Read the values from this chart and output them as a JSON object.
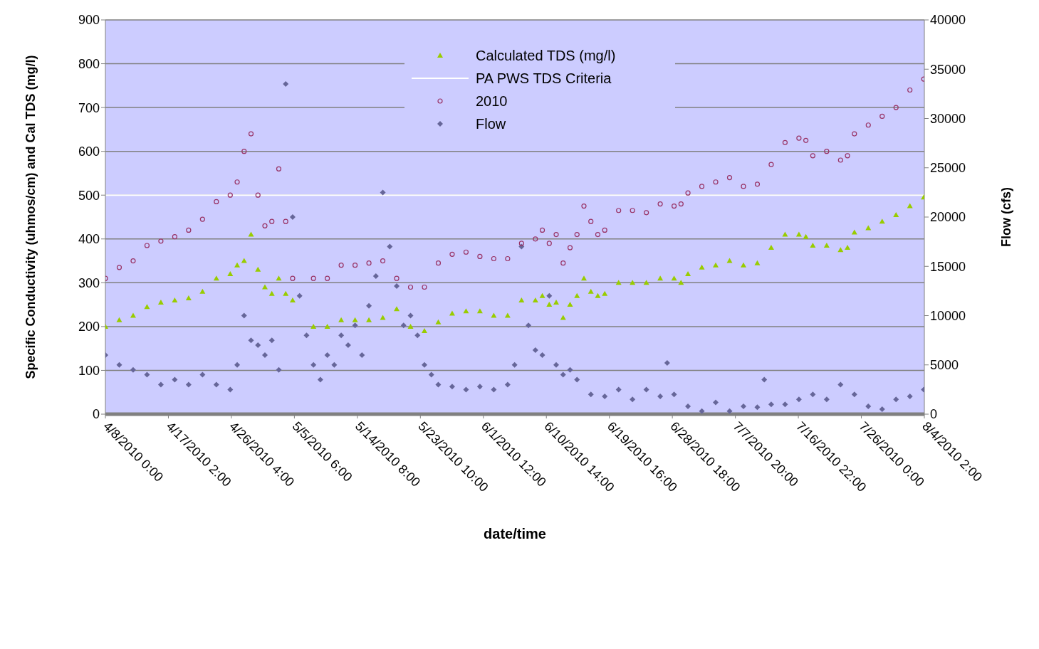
{
  "chart_data": {
    "type": "scatter",
    "xlabel": "date/time",
    "ylabel": "Specific Conductivity (uhmos/cm) and Cal TDS (mg/l)",
    "y2label": "Flow (cfs)",
    "x": [
      "2010-04-08",
      "2010-04-10",
      "2010-04-12",
      "2010-04-14",
      "2010-04-16",
      "2010-04-18",
      "2010-04-20",
      "2010-04-22",
      "2010-04-24",
      "2010-04-26",
      "2010-04-27",
      "2010-04-28",
      "2010-04-29",
      "2010-04-30",
      "2010-05-01",
      "2010-05-02",
      "2010-05-03",
      "2010-05-04",
      "2010-05-05",
      "2010-05-08",
      "2010-05-10",
      "2010-05-12",
      "2010-05-14",
      "2010-05-16",
      "2010-05-18",
      "2010-05-20",
      "2010-05-22",
      "2010-05-24",
      "2010-05-26",
      "2010-05-28",
      "2010-05-30",
      "2010-06-01",
      "2010-06-03",
      "2010-06-05",
      "2010-06-07",
      "2010-06-09",
      "2010-06-10",
      "2010-06-11",
      "2010-06-12",
      "2010-06-13",
      "2010-06-14",
      "2010-06-15",
      "2010-06-16",
      "2010-06-17",
      "2010-06-18",
      "2010-06-19",
      "2010-06-21",
      "2010-06-23",
      "2010-06-25",
      "2010-06-27",
      "2010-06-29",
      "2010-06-30",
      "2010-07-01",
      "2010-07-03",
      "2010-07-05",
      "2010-07-07",
      "2010-07-09",
      "2010-07-11",
      "2010-07-13",
      "2010-07-15",
      "2010-07-17",
      "2010-07-18",
      "2010-07-19",
      "2010-07-21",
      "2010-07-23",
      "2010-07-24",
      "2010-07-25",
      "2010-07-27",
      "2010-07-29",
      "2010-07-31",
      "2010-08-02",
      "2010-08-04"
    ],
    "series": [
      {
        "name": "Calculated TDS (mg/l)",
        "color": "#99cc00",
        "marker": "triangle",
        "values": [
          200,
          215,
          225,
          245,
          255,
          260,
          265,
          280,
          310,
          320,
          340,
          350,
          410,
          330,
          290,
          275,
          310,
          275,
          260,
          200,
          200,
          215,
          215,
          215,
          220,
          240,
          200,
          190,
          210,
          230,
          235,
          235,
          225,
          225,
          260,
          260,
          270,
          250,
          255,
          220,
          250,
          270,
          310,
          280,
          270,
          275,
          300,
          300,
          300,
          310,
          310,
          300,
          320,
          335,
          340,
          350,
          340,
          345,
          380,
          410,
          410,
          405,
          385,
          385,
          375,
          380,
          415,
          425,
          440,
          455,
          475,
          495
        ]
      },
      {
        "name": "PA PWS TDS Criteria",
        "type": "line",
        "color": "#ffffff",
        "marker": "none",
        "line_style": "solid",
        "x": [
          "2010-04-08",
          "2010-08-04T02:00"
        ],
        "values": [
          500,
          500
        ]
      },
      {
        "name": "2010",
        "color": "#993366",
        "marker": "circle",
        "values": [
          310,
          335,
          350,
          385,
          395,
          405,
          420,
          445,
          485,
          500,
          530,
          600,
          640,
          500,
          430,
          440,
          560,
          440,
          310,
          310,
          310,
          340,
          340,
          345,
          350,
          310,
          290,
          290,
          345,
          365,
          370,
          360,
          355,
          355,
          390,
          400,
          420,
          390,
          410,
          345,
          380,
          410,
          475,
          440,
          410,
          420,
          465,
          465,
          460,
          480,
          475,
          480,
          505,
          520,
          530,
          540,
          520,
          525,
          570,
          620,
          630,
          625,
          590,
          600,
          580,
          590,
          640,
          660,
          680,
          700,
          740,
          765
        ]
      },
      {
        "name": "Flow",
        "color": "#666699",
        "marker": "diamond",
        "axis": "y2",
        "x": [
          "2010-04-08",
          "2010-04-10",
          "2010-04-12",
          "2010-04-14",
          "2010-04-16",
          "2010-04-18",
          "2010-04-20",
          "2010-04-22",
          "2010-04-24",
          "2010-04-26",
          "2010-04-27",
          "2010-04-28",
          "2010-04-29",
          "2010-04-30",
          "2010-05-01",
          "2010-05-02",
          "2010-05-03",
          "2010-05-04",
          "2010-05-05",
          "2010-05-06",
          "2010-05-07",
          "2010-05-08",
          "2010-05-09",
          "2010-05-10",
          "2010-05-11",
          "2010-05-12",
          "2010-05-13",
          "2010-05-14",
          "2010-05-15",
          "2010-05-16",
          "2010-05-17",
          "2010-05-18",
          "2010-05-19",
          "2010-05-20",
          "2010-05-21",
          "2010-05-22",
          "2010-05-23",
          "2010-05-24",
          "2010-05-25",
          "2010-05-26",
          "2010-05-28",
          "2010-05-30",
          "2010-06-01",
          "2010-06-03",
          "2010-06-05",
          "2010-06-06",
          "2010-06-07",
          "2010-06-08",
          "2010-06-09",
          "2010-06-10",
          "2010-06-11",
          "2010-06-12",
          "2010-06-13",
          "2010-06-14",
          "2010-06-15",
          "2010-06-17",
          "2010-06-19",
          "2010-06-21",
          "2010-06-23",
          "2010-06-25",
          "2010-06-27",
          "2010-06-28",
          "2010-06-29",
          "2010-07-01",
          "2010-07-03",
          "2010-07-05",
          "2010-07-07",
          "2010-07-09",
          "2010-07-11",
          "2010-07-12",
          "2010-07-13",
          "2010-07-15",
          "2010-07-17",
          "2010-07-19",
          "2010-07-21",
          "2010-07-23",
          "2010-07-25",
          "2010-07-27",
          "2010-07-29",
          "2010-07-31",
          "2010-08-02",
          "2010-08-04"
        ],
        "values": [
          6000,
          5000,
          4500,
          4000,
          3000,
          3500,
          3000,
          4000,
          3000,
          2500,
          5000,
          10000,
          7500,
          7000,
          6000,
          7500,
          4500,
          33500,
          20000,
          12000,
          8000,
          5000,
          3500,
          6000,
          5000,
          8000,
          7000,
          9000,
          6000,
          11000,
          14000,
          22500,
          17000,
          13000,
          9000,
          10000,
          8000,
          5000,
          4000,
          3000,
          2800,
          2500,
          2800,
          2500,
          3000,
          5000,
          17000,
          9000,
          6500,
          6000,
          12000,
          5000,
          4000,
          4500,
          3500,
          2000,
          1800,
          2500,
          1500,
          2500,
          1800,
          5200,
          2000,
          800,
          300,
          1200,
          300,
          800,
          700,
          3500,
          1000,
          1000,
          1500,
          2000,
          1500,
          3000,
          2000,
          800,
          500,
          1500,
          1800,
          2500
        ]
      }
    ],
    "xlim": [
      "2010-04-08",
      "2010-08-04T02:00"
    ],
    "xticks": [
      {
        "value": "2010-04-08T00:00",
        "label": "4/8/2010 0:00"
      },
      {
        "value": "2010-04-17T02:00",
        "label": "4/17/2010 2:00"
      },
      {
        "value": "2010-04-26T04:00",
        "label": "4/26/2010 4:00"
      },
      {
        "value": "2010-05-05T06:00",
        "label": "5/5/2010 6:00"
      },
      {
        "value": "2010-05-14T08:00",
        "label": "5/14/2010 8:00"
      },
      {
        "value": "2010-05-23T10:00",
        "label": "5/23/2010 10:00"
      },
      {
        "value": "2010-06-01T12:00",
        "label": "6/1/2010 12:00"
      },
      {
        "value": "2010-06-10T14:00",
        "label": "6/10/2010 14:00"
      },
      {
        "value": "2010-06-19T16:00",
        "label": "6/19/2010 16:00"
      },
      {
        "value": "2010-06-28T18:00",
        "label": "6/28/2010 18:00"
      },
      {
        "value": "2010-07-07T20:00",
        "label": "7/7/2010 20:00"
      },
      {
        "value": "2010-07-16T22:00",
        "label": "7/16/2010 22:00"
      },
      {
        "value": "2010-07-26T00:00",
        "label": "7/26/2010 0:00"
      },
      {
        "value": "2010-08-04T02:00",
        "label": "8/4/2010 2:00"
      }
    ],
    "ylim": [
      0,
      900
    ],
    "yticks": [
      0,
      100,
      200,
      300,
      400,
      500,
      600,
      700,
      800,
      900
    ],
    "y2lim": [
      0,
      40000
    ],
    "y2ticks": [
      0,
      5000,
      10000,
      15000,
      20000,
      25000,
      30000,
      35000,
      40000
    ],
    "grid": "y",
    "legend": "top"
  }
}
